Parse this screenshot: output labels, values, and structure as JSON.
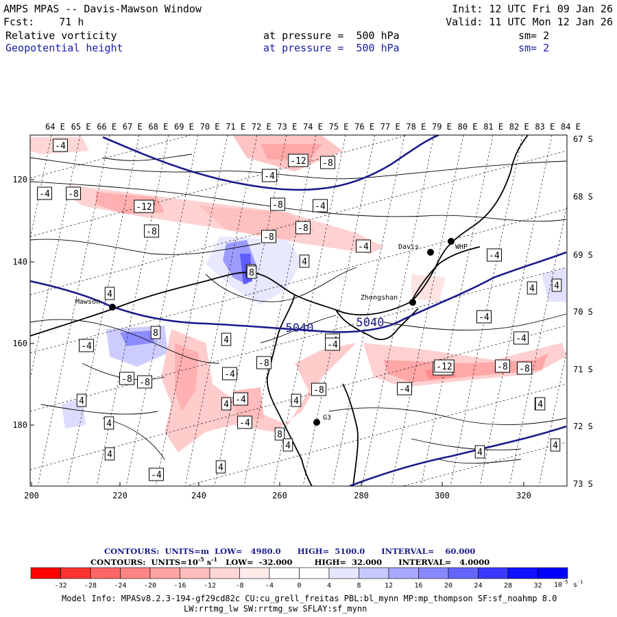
{
  "header": {
    "title": "AMPS MPAS -- Davis-Mawson Window",
    "forecast": "Fcst:    71 h",
    "init": "Init: 12 UTC Fri 09 Jan 26",
    "valid": "Valid: 11 UTC Mon 12 Jan 26",
    "field1": {
      "name": "Relative vorticity",
      "level": "at pressure =  500 hPa",
      "smooth": "sm= 2"
    },
    "field2": {
      "name": "Geopotential height",
      "level": "at pressure =  500 hPa",
      "smooth": "sm= 2"
    }
  },
  "map": {
    "top_lon_labels": [
      "64 E",
      "65 E",
      "66 E",
      "67 E",
      "68 E",
      "69 E",
      "70 E",
      "71 E",
      "72 E",
      "73 E",
      "74 E",
      "75 E",
      "76 E",
      "77 E",
      "78 E",
      "79 E",
      "80 E",
      "81 E",
      "82 E",
      "83 E",
      "84 E"
    ],
    "right_lat_labels": [
      "67 S",
      "68 S",
      "69 S",
      "70 S",
      "71 S",
      "72 S",
      "73 S"
    ],
    "left_y_labels": [
      "120",
      "140",
      "160",
      "180"
    ],
    "bottom_x_labels": [
      "200",
      "220",
      "240",
      "260",
      "280",
      "300",
      "320"
    ],
    "stations": [
      {
        "name": "Davis"
      },
      {
        "name": "WHP"
      },
      {
        "name": "Mawson"
      },
      {
        "name": "Zhongshan"
      },
      {
        "name": "G3"
      }
    ],
    "vort_labels": [
      "-4",
      "-12",
      "-8",
      "-4",
      "-4",
      "-8",
      "-12",
      "-8",
      "-4",
      "-8",
      "-8",
      "-4",
      "-4",
      "4",
      "-8",
      "8",
      "4",
      "4",
      "-4",
      "4",
      "8",
      "-4",
      "-4",
      "-4",
      "4",
      "-8",
      "-4",
      "-8",
      "-8",
      "-12",
      "-8",
      "-8",
      "4",
      "4",
      "-4",
      "8",
      "4",
      "4",
      "-4",
      "-4",
      "-8",
      "-4",
      "4",
      "4",
      "-4",
      "4",
      "4",
      "4",
      "4",
      "-12",
      "8",
      "4"
    ],
    "height_labels": [
      "5040",
      "5040"
    ]
  },
  "legend": {
    "contour1": {
      "label": "CONTOURS:  UNITS=m  LOW=   4980.0      HIGH=  5100.0      INTERVAL=    60.000"
    },
    "contour2": {
      "label": "CONTOURS:  UNITS=10",
      "exp": "-5",
      "unit_s": " s",
      "exp2": "-1",
      "rest": "   LOW=  -32.000        HIGH=  32.000      INTERVAL=   4.0000"
    },
    "colorbar_ticks": [
      "-32",
      "-28",
      "-24",
      "-20",
      "-16",
      "-12",
      "-8",
      "-4",
      "0",
      "4",
      "8",
      "12",
      "16",
      "20",
      "24",
      "28",
      "32"
    ],
    "colorbar_unit": "10",
    "colorbar_unit_exp": "-5",
    "colorbar_unit_s": "s",
    "colorbar_unit_exp2": "-1",
    "colors": [
      "#ff0000",
      "#ff3333",
      "#ff6666",
      "#ff8484",
      "#ffa2a2",
      "#ffbcbc",
      "#ffd6d6",
      "#ffeaea",
      "#ffffff",
      "#ffffff",
      "#e6e6ff",
      "#c8c8ff",
      "#a8a8ff",
      "#8888ff",
      "#6666ff",
      "#3a3aff",
      "#1010ff"
    ]
  },
  "footer": {
    "line1": "Model Info: MPASv8.2.3-194-gf29cd82c CU:cu_grell_freitas PBL:bl_mynn MP:mp_thompson SF:sf_noahmp 8.0",
    "line2": "LW:rrtmg_lw SW:rrtmg_sw SFLAY:sf_mynn"
  }
}
